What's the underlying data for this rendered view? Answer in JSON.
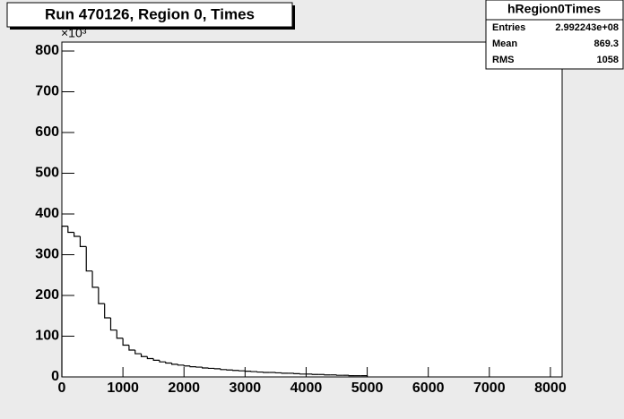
{
  "chart_data": {
    "type": "histogram",
    "title": "Run 470126, Region 0, Times",
    "y_multiplier": "×10³",
    "bins": [
      0,
      100,
      200,
      300,
      400,
      500,
      600,
      700,
      800,
      900,
      1000,
      1100,
      1200,
      1300,
      1400,
      1500,
      1600,
      1700,
      1800,
      1900,
      2000,
      2100,
      2200,
      2300,
      2400,
      2500,
      2600,
      2700,
      2800,
      2900,
      3000,
      3100,
      3200,
      3300,
      3400,
      3500,
      3600,
      3700,
      3800,
      3900,
      4000,
      4100,
      4200,
      4300,
      4400,
      4500,
      4600,
      4700,
      4800,
      4900,
      5000
    ],
    "counts": [
      370,
      355,
      345,
      320,
      260,
      220,
      180,
      145,
      115,
      95,
      78,
      66,
      57,
      50,
      45,
      41,
      37,
      34,
      31,
      29,
      27,
      25,
      24,
      22,
      21,
      20,
      18,
      17,
      16,
      15,
      14,
      13,
      12,
      11,
      11,
      10,
      9,
      9,
      8,
      7,
      7,
      6,
      6,
      5,
      5,
      4,
      4,
      3,
      3,
      3
    ],
    "color": "#000000",
    "xlim": [
      0,
      8192
    ],
    "xticks": [
      0,
      1000,
      2000,
      3000,
      4000,
      5000,
      6000,
      7000,
      8000
    ],
    "ylim": [
      0,
      822
    ],
    "yticks": [
      0,
      100,
      200,
      300,
      400,
      500,
      600,
      700,
      800
    ],
    "stats": {
      "title": "hRegion0Times",
      "rows": [
        [
          "Entries",
          "2.992243e+08"
        ],
        [
          "Mean",
          "869.3"
        ],
        [
          "RMS",
          "1058"
        ]
      ]
    }
  }
}
